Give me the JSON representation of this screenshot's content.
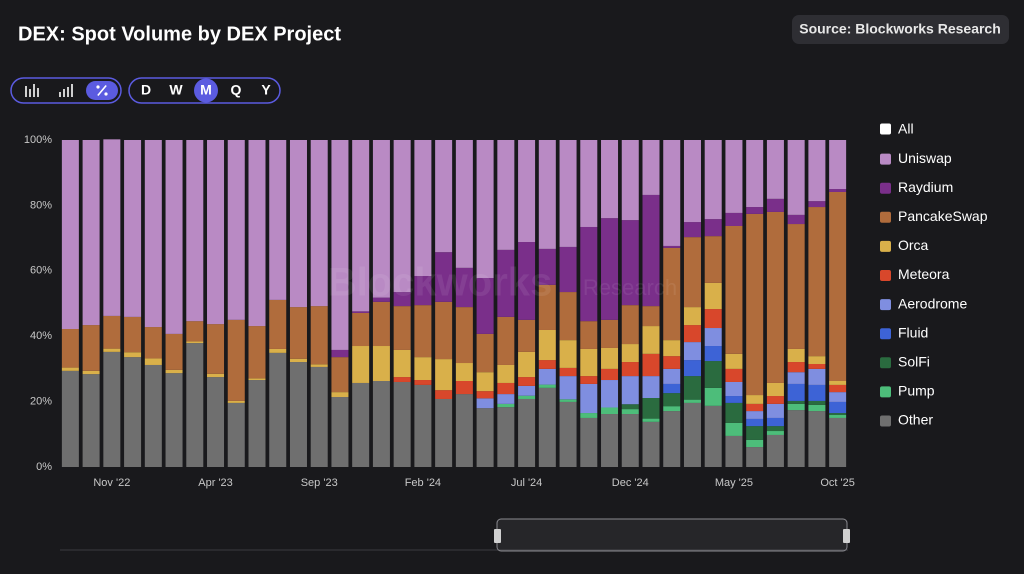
{
  "chart_data": {
    "type": "stacked_bar",
    "title": "DEX: Spot Volume by DEX Project",
    "source": "Source: Blockworks Research",
    "watermark": [
      "Blockworks",
      "Research"
    ],
    "controls": {
      "periods": [
        "D",
        "W",
        "M",
        "Q",
        "Y"
      ],
      "active_period": 2
    },
    "legend_all": "All",
    "categories": [
      null,
      null,
      "Nov '22",
      null,
      null,
      null,
      null,
      "Apr '23",
      null,
      null,
      null,
      null,
      "Sep '23",
      null,
      null,
      null,
      null,
      "Feb '24",
      null,
      null,
      null,
      null,
      "Jul '24",
      null,
      null,
      null,
      null,
      "Dec '24",
      null,
      null,
      null,
      null,
      "May '25",
      null,
      null,
      null,
      null,
      "Oct '25"
    ],
    "ylim": [
      0,
      100
    ],
    "yticks": [
      {
        "value": 0,
        "label": "0%"
      },
      {
        "value": 20,
        "label": "20%"
      },
      {
        "value": 40,
        "label": "40%"
      },
      {
        "value": 60,
        "label": "60%"
      },
      {
        "value": 80,
        "label": "80%"
      },
      {
        "value": 100,
        "label": "100%"
      }
    ],
    "grid": false,
    "series": [
      {
        "name": "Uniswap",
        "color": "#b98ac4",
        "values": [
          57.8,
          56.6,
          54,
          54.1,
          57.2,
          59.3,
          55.4,
          56.3,
          55,
          56.9,
          48.9,
          51.1,
          50.8,
          64.2,
          52.4,
          48.2,
          46.5,
          41.6,
          34.3,
          39.1,
          42.2,
          33.6,
          31.2,
          33.3,
          32.7,
          26.6,
          23.9,
          24.5,
          16.8,
          32.4,
          25.1,
          24.2,
          22.3,
          20.5,
          18,
          22.9,
          18.7,
          15
        ]
      },
      {
        "name": "Raydium",
        "color": "#7a2f8a",
        "values": [
          0,
          0,
          0,
          0,
          0,
          0,
          0,
          0,
          0,
          0,
          0,
          0,
          0,
          2.2,
          0.5,
          1.3,
          4.3,
          8.9,
          15.2,
          12,
          17.1,
          20.5,
          23.8,
          11,
          13.8,
          28.8,
          31.1,
          26,
          34,
          0.6,
          4.6,
          5.2,
          4,
          2.1,
          4,
          2.8,
          1.8,
          0.9
        ]
      },
      {
        "name": "PancakeSwap",
        "color": "#b06c3c",
        "values": [
          11.8,
          14,
          10,
          10.8,
          9.6,
          11,
          6.2,
          15.2,
          24.8,
          16,
          15,
          15.8,
          17.8,
          10.7,
          10.1,
          13.5,
          13.4,
          15.9,
          17.5,
          17.1,
          11.7,
          14.7,
          9.8,
          13.8,
          14.7,
          8.5,
          8.6,
          11.9,
          6.1,
          28.2,
          21.4,
          14.3,
          39.1,
          55.4,
          52.3,
          38.2,
          45.6,
          57.8
        ]
      },
      {
        "name": "Orca",
        "color": "#d9b04a",
        "values": [
          1,
          1,
          1,
          1.5,
          2,
          1,
          0.5,
          1,
          0.6,
          0.5,
          1.2,
          1,
          0.8,
          1.5,
          11.3,
          10.7,
          8.3,
          7,
          9.5,
          5.5,
          5.8,
          5.5,
          7.7,
          9.2,
          8.5,
          8.3,
          6.4,
          5.5,
          8.5,
          4.9,
          5.5,
          8,
          4.6,
          2.7,
          4,
          4,
          2.4,
          1.2
        ]
      },
      {
        "name": "Meteora",
        "color": "#d8472b",
        "values": [
          0,
          0,
          0,
          0,
          0,
          0,
          0,
          0,
          0,
          0,
          0,
          0,
          0,
          0,
          0,
          0,
          1.5,
          1.5,
          2.7,
          4,
          2.2,
          3.4,
          2.7,
          2.7,
          2.5,
          2.4,
          3.4,
          4.3,
          6.8,
          3.9,
          5.2,
          5.8,
          4,
          2.2,
          2.4,
          3.1,
          1.5,
          2.2
        ]
      },
      {
        "name": "Aerodrome",
        "color": "#7f8ee0",
        "values": [
          0,
          0,
          0,
          0,
          0,
          0,
          0,
          0,
          0,
          0,
          0,
          0,
          0,
          0,
          0,
          0,
          0,
          0,
          0,
          0,
          3,
          3,
          3,
          4.8,
          7.1,
          8.9,
          8.4,
          8.6,
          6.7,
          4.6,
          5.5,
          5.5,
          4.3,
          2.4,
          4.3,
          3.6,
          4.9,
          3
        ]
      },
      {
        "name": "Fluid",
        "color": "#3d63d6",
        "values": [
          0,
          0,
          0,
          0,
          0,
          0,
          0,
          0,
          0,
          0,
          0,
          0,
          0,
          0,
          0,
          0,
          0,
          0,
          0,
          0,
          0,
          0,
          0,
          0,
          0,
          0,
          0,
          0,
          0,
          2.8,
          4.9,
          4.6,
          2.1,
          2.2,
          2.5,
          5.2,
          4.9,
          3.4
        ]
      },
      {
        "name": "SolFi",
        "color": "#2a6b3f",
        "values": [
          0,
          0,
          0,
          0,
          0,
          0,
          0,
          0,
          0,
          0,
          0,
          0,
          0,
          0,
          0,
          0,
          0,
          0,
          0,
          0,
          0,
          0,
          0,
          0,
          0,
          0,
          0,
          1.5,
          6.3,
          4,
          7.2,
          8.2,
          6.1,
          4.2,
          1.5,
          0.9,
          1.2,
          0.6
        ]
      },
      {
        "name": "Pump",
        "color": "#4dbd7a",
        "values": [
          0,
          0,
          0,
          0,
          0,
          0,
          0,
          0,
          0,
          0,
          0,
          0,
          0,
          0,
          0,
          0,
          0,
          0,
          0,
          0,
          0,
          1,
          1,
          1,
          0.8,
          1.5,
          2,
          1.5,
          1,
          1.5,
          1,
          5.5,
          4,
          2.2,
          1.2,
          1.9,
          1.9,
          0.9
        ]
      },
      {
        "name": "Other",
        "color": "#6f6f6f",
        "values": [
          29.4,
          28.4,
          35.2,
          33.6,
          31.2,
          28.7,
          37.9,
          27.5,
          19.6,
          26.6,
          34.9,
          32.1,
          30.6,
          21.4,
          25.7,
          26.3,
          26,
          25.1,
          20.8,
          22.3,
          18,
          18.3,
          20.8,
          24.2,
          19.9,
          15,
          16.2,
          16.2,
          13.8,
          17.1,
          19.6,
          18.7,
          9.5,
          6.1,
          9.8,
          17.4,
          17.1,
          15
        ]
      }
    ]
  }
}
